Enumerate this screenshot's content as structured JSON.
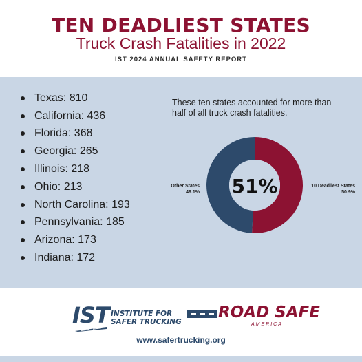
{
  "header": {
    "title": "TEN DEADLIEST STATES",
    "subtitle": "Truck Crash Fatalities in 2022",
    "report": "IST 2024 ANNUAL SAFETY REPORT"
  },
  "states": [
    {
      "label": "Texas: 810"
    },
    {
      "label": "California: 436"
    },
    {
      "label": "Florida: 368"
    },
    {
      "label": "Georgia: 265"
    },
    {
      "label": "Illinois: 218"
    },
    {
      "label": "Ohio: 213"
    },
    {
      "label": "North Carolina: 193"
    },
    {
      "label": "Pennsylvania: 185"
    },
    {
      "label": "Arizona: 173"
    },
    {
      "label": "Indiana: 172"
    }
  ],
  "note": "These ten states accounted for more than half of all truck crash fatalities.",
  "chart_data": {
    "type": "pie",
    "center_label": "51%",
    "slices": [
      {
        "name": "10 Deadliest States",
        "value_label": "50.9%",
        "value": 50.9,
        "color": "#8c1232"
      },
      {
        "name": "Other States",
        "value_label": "49.1%",
        "value": 49.1,
        "color": "#2d4a6b"
      }
    ]
  },
  "footer": {
    "ist_letters": "IST",
    "ist_line1": "INSTITUTE FOR",
    "ist_line2": "SAFER TRUCKING",
    "rs_name": "ROAD SAFE",
    "rs_sub": "AMERICA",
    "url": "www.safertrucking.org"
  },
  "colors": {
    "brand_red": "#8c1232",
    "brand_navy": "#2d4a6b",
    "panel_bg": "#c9d6e5"
  }
}
